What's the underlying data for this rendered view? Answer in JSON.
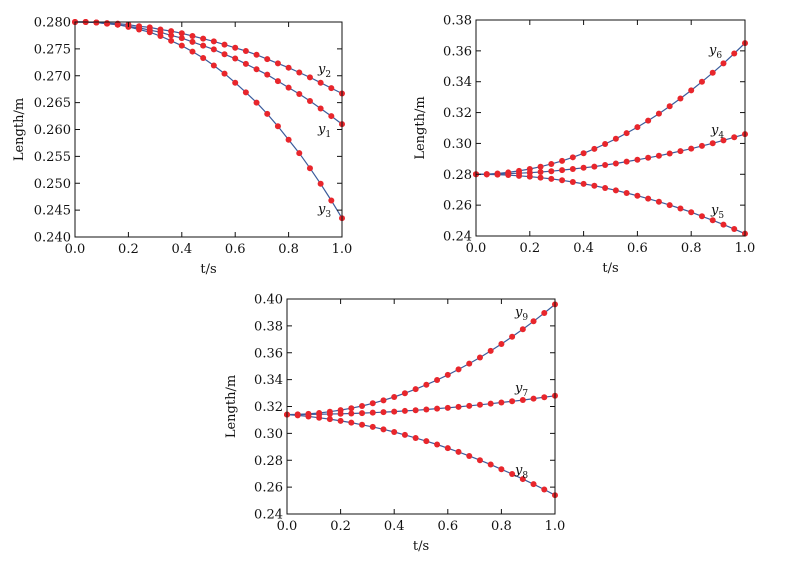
{
  "colors": {
    "marker": "#e8262c",
    "line": "#3b5b9b",
    "axes": "#111111"
  },
  "chart_data": [
    {
      "type": "line",
      "xlabel": "t/s",
      "ylabel": "Length/m",
      "xlim": [
        0,
        1.0
      ],
      "ylim": [
        0.24,
        0.28
      ],
      "xticks": [
        "0.0",
        "0.2",
        "0.4",
        "0.6",
        "0.8",
        "1.0"
      ],
      "yticks": [
        "0.240",
        "0.245",
        "0.250",
        "0.255",
        "0.260",
        "0.265",
        "0.270",
        "0.275",
        "0.280"
      ],
      "grid": false,
      "x": [
        0,
        0.04,
        0.08,
        0.12,
        0.16,
        0.2,
        0.24,
        0.28,
        0.32,
        0.36,
        0.4,
        0.44,
        0.48,
        0.52,
        0.56,
        0.6,
        0.64,
        0.68,
        0.72,
        0.76,
        0.8,
        0.84,
        0.88,
        0.92,
        0.96,
        1.0
      ],
      "series": [
        {
          "name": "y1",
          "values": [
            0.28,
            0.28,
            0.2799,
            0.2797,
            0.2795,
            0.2792,
            0.2789,
            0.2785,
            0.2781,
            0.2775,
            0.277,
            0.2763,
            0.2756,
            0.2749,
            0.274,
            0.2732,
            0.2722,
            0.2712,
            0.2702,
            0.269,
            0.2678,
            0.2666,
            0.2653,
            0.2639,
            0.2625,
            0.261
          ]
        },
        {
          "name": "y2",
          "values": [
            0.28,
            0.28,
            0.2799,
            0.2798,
            0.2797,
            0.2795,
            0.2792,
            0.279,
            0.2786,
            0.2783,
            0.2779,
            0.2774,
            0.2769,
            0.2764,
            0.2758,
            0.2752,
            0.2746,
            0.2739,
            0.2731,
            0.2723,
            0.2715,
            0.2706,
            0.2697,
            0.2687,
            0.2677,
            0.2667
          ]
        },
        {
          "name": "y3",
          "values": [
            0.28,
            0.28,
            0.2799,
            0.2797,
            0.2795,
            0.2791,
            0.2786,
            0.2781,
            0.2774,
            0.2765,
            0.2756,
            0.2745,
            0.2733,
            0.2719,
            0.2704,
            0.2687,
            0.2669,
            0.265,
            0.2629,
            0.2606,
            0.2581,
            0.2556,
            0.2528,
            0.2499,
            0.2468,
            0.2435
          ]
        }
      ]
    },
    {
      "type": "line",
      "xlabel": "t/s",
      "ylabel": "Length/m",
      "xlim": [
        0,
        1.0
      ],
      "ylim": [
        0.24,
        0.38
      ],
      "xticks": [
        "0.0",
        "0.2",
        "0.4",
        "0.6",
        "0.8",
        "1.0"
      ],
      "yticks": [
        "0.24",
        "0.26",
        "0.28",
        "0.30",
        "0.32",
        "0.34",
        "0.36",
        "0.38"
      ],
      "grid": false,
      "x": [
        0,
        0.04,
        0.08,
        0.12,
        0.16,
        0.2,
        0.24,
        0.28,
        0.32,
        0.36,
        0.4,
        0.44,
        0.48,
        0.52,
        0.56,
        0.6,
        0.64,
        0.68,
        0.72,
        0.76,
        0.8,
        0.84,
        0.88,
        0.92,
        0.96,
        1.0
      ],
      "series": [
        {
          "name": "y4",
          "values": [
            0.28,
            0.28,
            0.2802,
            0.2804,
            0.2807,
            0.281,
            0.2815,
            0.282,
            0.2827,
            0.2834,
            0.2842,
            0.285,
            0.286,
            0.287,
            0.2882,
            0.2894,
            0.2907,
            0.292,
            0.2935,
            0.295,
            0.2966,
            0.2984,
            0.3001,
            0.302,
            0.304,
            0.306
          ]
        },
        {
          "name": "y5",
          "values": [
            0.28,
            0.2799,
            0.2798,
            0.2795,
            0.279,
            0.2785,
            0.2778,
            0.277,
            0.2761,
            0.275,
            0.2738,
            0.2726,
            0.2711,
            0.2696,
            0.2679,
            0.2661,
            0.2642,
            0.2622,
            0.26,
            0.2578,
            0.2554,
            0.2528,
            0.2502,
            0.2474,
            0.2445,
            0.2415
          ]
        },
        {
          "name": "y6",
          "values": [
            0.28,
            0.2801,
            0.2805,
            0.2812,
            0.2822,
            0.2834,
            0.2849,
            0.2867,
            0.2887,
            0.291,
            0.2936,
            0.2965,
            0.2996,
            0.303,
            0.3067,
            0.3106,
            0.3148,
            0.3193,
            0.3241,
            0.3291,
            0.3344,
            0.34,
            0.3458,
            0.3519,
            0.3583,
            0.365
          ]
        }
      ]
    },
    {
      "type": "line",
      "xlabel": "t/s",
      "ylabel": "Length/m",
      "xlim": [
        0,
        1.0
      ],
      "ylim": [
        0.24,
        0.4
      ],
      "xticks": [
        "0.0",
        "0.2",
        "0.4",
        "0.6",
        "0.8",
        "1.0"
      ],
      "yticks": [
        "0.24",
        "0.26",
        "0.28",
        "0.30",
        "0.32",
        "0.34",
        "0.36",
        "0.38",
        "0.40"
      ],
      "grid": false,
      "x": [
        0,
        0.04,
        0.08,
        0.12,
        0.16,
        0.2,
        0.24,
        0.28,
        0.32,
        0.36,
        0.4,
        0.44,
        0.48,
        0.52,
        0.56,
        0.6,
        0.64,
        0.68,
        0.72,
        0.76,
        0.8,
        0.84,
        0.88,
        0.92,
        0.96,
        1.0
      ],
      "series": [
        {
          "name": "y7",
          "values": [
            0.314,
            0.314,
            0.3141,
            0.3142,
            0.3144,
            0.3146,
            0.3148,
            0.3151,
            0.3154,
            0.3158,
            0.3162,
            0.3167,
            0.3172,
            0.3178,
            0.3184,
            0.319,
            0.3197,
            0.3205,
            0.3213,
            0.3221,
            0.323,
            0.3239,
            0.3248,
            0.3259,
            0.3269,
            0.328
          ]
        },
        {
          "name": "y8",
          "values": [
            0.314,
            0.3134,
            0.3126,
            0.3116,
            0.3106,
            0.3093,
            0.308,
            0.3064,
            0.3048,
            0.303,
            0.301,
            0.2989,
            0.2966,
            0.2942,
            0.2917,
            0.289,
            0.2862,
            0.2832,
            0.28,
            0.2768,
            0.2733,
            0.2698,
            0.266,
            0.2622,
            0.2582,
            0.254
          ]
        },
        {
          "name": "y9",
          "values": [
            0.314,
            0.3141,
            0.3145,
            0.3152,
            0.3161,
            0.3173,
            0.3187,
            0.3204,
            0.3224,
            0.3246,
            0.3271,
            0.3299,
            0.3329,
            0.3362,
            0.3397,
            0.3435,
            0.3476,
            0.3519,
            0.3565,
            0.3614,
            0.3665,
            0.3719,
            0.3775,
            0.3834,
            0.3896,
            0.396
          ]
        }
      ]
    }
  ]
}
